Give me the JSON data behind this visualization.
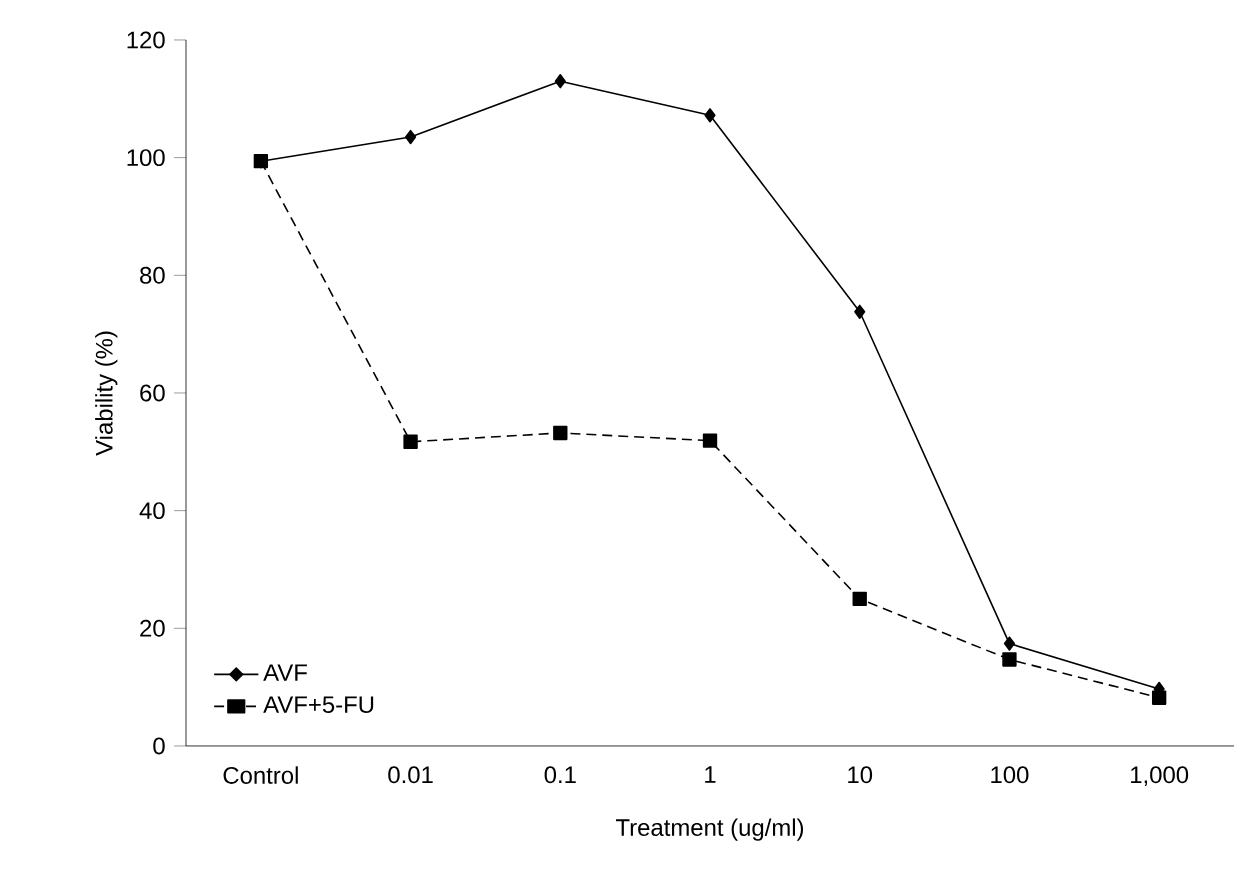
{
  "chart_data": {
    "type": "line",
    "xlabel": "Treatment (ug/ml)",
    "ylabel": "Viability (%)",
    "categories": [
      "Control",
      "0.01",
      "0.1",
      "1",
      "10",
      "100",
      "1,000"
    ],
    "series": [
      {
        "name": "AVF",
        "color": "#000000",
        "marker": "diamond",
        "line_style": "solid",
        "values": [
          99.4,
          103.5,
          113,
          107.2,
          73.8,
          17.4,
          9.7
        ]
      },
      {
        "name": "AVF+5-FU",
        "color": "#000000",
        "marker": "square",
        "line_style": "dashed",
        "values": [
          99.4,
          51.7,
          53.2,
          51.9,
          25,
          14.7,
          8.2
        ]
      }
    ],
    "ylim": [
      0,
      120
    ],
    "yticks": [
      0,
      20,
      40,
      60,
      80,
      100,
      120
    ],
    "legend": "bottom left",
    "grid": false
  }
}
